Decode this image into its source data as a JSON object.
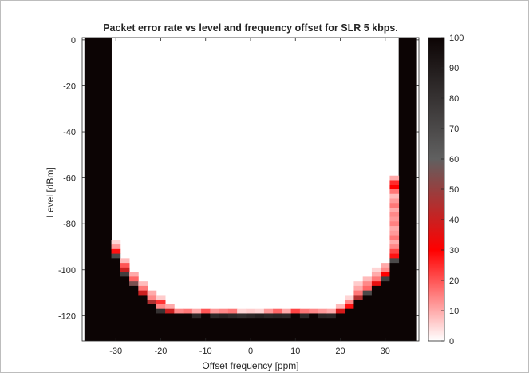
{
  "chart_data": {
    "type": "heatmap",
    "title": "Packet error rate vs level and frequency offset for SLR 5 kbps.",
    "xlabel": "Offset frequency [ppm]",
    "ylabel": "Level [dBm]",
    "xlim": [
      -37.5,
      37.5
    ],
    "ylim": [
      -131,
      1
    ],
    "xticks": [
      -30,
      -20,
      -10,
      0,
      10,
      20,
      30
    ],
    "yticks": [
      0,
      -20,
      -40,
      -60,
      -80,
      -100,
      -120
    ],
    "cell_width_ppm": 2,
    "cell_height_dBm": 2,
    "x_columns": [
      -36,
      -34,
      -32,
      -30,
      -28,
      -26,
      -24,
      -22,
      -20,
      -18,
      -16,
      -14,
      -12,
      -10,
      -8,
      -6,
      -4,
      -2,
      0,
      2,
      4,
      6,
      8,
      10,
      12,
      14,
      16,
      18,
      20,
      22,
      24,
      26,
      28,
      30,
      32,
      34,
      36
    ],
    "colorbar": {
      "min": 0,
      "max": 100,
      "ticks": [
        0,
        10,
        20,
        30,
        40,
        50,
        60,
        70,
        80,
        90,
        100
      ],
      "colormap": "white-red-black"
    },
    "fully_failing_columns": [
      -36,
      -34,
      -32,
      34,
      36
    ],
    "bottom_failing_below_dBm": -120,
    "column_profiles": [
      {
        "x": -30,
        "transition": [
          {
            "y": -88,
            "v": 5
          },
          {
            "y": -90,
            "v": 12
          },
          {
            "y": -92,
            "v": 28
          },
          {
            "y": -94,
            "v": 70
          }
        ],
        "solid_below": -96
      },
      {
        "x": -28,
        "transition": [
          {
            "y": -96,
            "v": 8
          },
          {
            "y": -98,
            "v": 20
          },
          {
            "y": -100,
            "v": 40
          },
          {
            "y": -102,
            "v": 75
          }
        ],
        "solid_below": -104
      },
      {
        "x": -26,
        "transition": [
          {
            "y": -102,
            "v": 10
          },
          {
            "y": -104,
            "v": 18
          },
          {
            "y": -106,
            "v": 55
          }
        ],
        "solid_below": -108
      },
      {
        "x": -24,
        "transition": [
          {
            "y": -106,
            "v": 8
          },
          {
            "y": -108,
            "v": 16
          },
          {
            "y": -110,
            "v": 40
          }
        ],
        "solid_below": -112
      },
      {
        "x": -22,
        "transition": [
          {
            "y": -110,
            "v": 10
          },
          {
            "y": -112,
            "v": 14
          },
          {
            "y": -114,
            "v": 45
          }
        ],
        "solid_below": -116
      },
      {
        "x": -20,
        "transition": [
          {
            "y": -112,
            "v": 6
          },
          {
            "y": -114,
            "v": 24
          },
          {
            "y": -116,
            "v": 14
          },
          {
            "y": -118,
            "v": 80
          }
        ],
        "solid_below": -120
      },
      {
        "x": -18,
        "transition": [
          {
            "y": -116,
            "v": 10
          },
          {
            "y": -118,
            "v": 40
          }
        ],
        "solid_below": -120
      },
      {
        "x": -16,
        "transition": [
          {
            "y": -118,
            "v": 14
          }
        ],
        "solid_below": -120
      },
      {
        "x": -14,
        "transition": [
          {
            "y": -118,
            "v": 16
          }
        ],
        "solid_below": -120
      },
      {
        "x": -12,
        "transition": [
          {
            "y": -118,
            "v": 10
          },
          {
            "y": -120,
            "v": 85
          }
        ],
        "solid_below": -122
      },
      {
        "x": -10,
        "transition": [
          {
            "y": -118,
            "v": 20
          }
        ],
        "solid_below": -120
      },
      {
        "x": -8,
        "transition": [
          {
            "y": -118,
            "v": 12
          },
          {
            "y": -120,
            "v": 85
          }
        ],
        "solid_below": -122
      },
      {
        "x": -6,
        "transition": [
          {
            "y": -118,
            "v": 14
          },
          {
            "y": -120,
            "v": 88
          }
        ],
        "solid_below": -122
      },
      {
        "x": -4,
        "transition": [
          {
            "y": -118,
            "v": 16
          },
          {
            "y": -120,
            "v": 85
          }
        ],
        "solid_below": -122
      },
      {
        "x": -2,
        "transition": [
          {
            "y": -118,
            "v": 5
          },
          {
            "y": -120,
            "v": 82
          }
        ],
        "solid_below": -122
      },
      {
        "x": 0,
        "transition": [
          {
            "y": -118,
            "v": 6
          },
          {
            "y": -120,
            "v": 85
          }
        ],
        "solid_below": -122
      },
      {
        "x": 2,
        "transition": [
          {
            "y": -118,
            "v": 5
          },
          {
            "y": -120,
            "v": 88
          }
        ],
        "solid_below": -122
      },
      {
        "x": 4,
        "transition": [
          {
            "y": -118,
            "v": 12
          },
          {
            "y": -120,
            "v": 85
          }
        ],
        "solid_below": -122
      },
      {
        "x": 6,
        "transition": [
          {
            "y": -118,
            "v": 18
          },
          {
            "y": -120,
            "v": 86
          }
        ],
        "solid_below": -122
      },
      {
        "x": 8,
        "transition": [
          {
            "y": -118,
            "v": 10
          },
          {
            "y": -120,
            "v": 85
          }
        ],
        "solid_below": -122
      },
      {
        "x": 10,
        "transition": [
          {
            "y": -118,
            "v": 22
          }
        ],
        "solid_below": -120
      },
      {
        "x": 12,
        "transition": [
          {
            "y": -118,
            "v": 16
          },
          {
            "y": -120,
            "v": 85
          }
        ],
        "solid_below": -122
      },
      {
        "x": 14,
        "transition": [
          {
            "y": -118,
            "v": 14
          }
        ],
        "solid_below": -120
      },
      {
        "x": 16,
        "transition": [
          {
            "y": -118,
            "v": 12
          },
          {
            "y": -120,
            "v": 86
          }
        ],
        "solid_below": -122
      },
      {
        "x": 18,
        "transition": [
          {
            "y": -118,
            "v": 10
          },
          {
            "y": -120,
            "v": 85
          }
        ],
        "solid_below": -122
      },
      {
        "x": 20,
        "transition": [
          {
            "y": -116,
            "v": 8
          },
          {
            "y": -118,
            "v": 38
          }
        ],
        "solid_below": -120
      },
      {
        "x": 22,
        "transition": [
          {
            "y": -112,
            "v": 5
          },
          {
            "y": -114,
            "v": 14
          },
          {
            "y": -116,
            "v": 28
          }
        ],
        "solid_below": -118
      },
      {
        "x": 24,
        "transition": [
          {
            "y": -106,
            "v": 6
          },
          {
            "y": -108,
            "v": 10
          },
          {
            "y": -110,
            "v": 16
          },
          {
            "y": -112,
            "v": 45
          }
        ],
        "solid_below": -114
      },
      {
        "x": 26,
        "transition": [
          {
            "y": -104,
            "v": 8
          },
          {
            "y": -106,
            "v": 14
          },
          {
            "y": -108,
            "v": 18
          },
          {
            "y": -110,
            "v": 70
          }
        ],
        "solid_below": -112
      },
      {
        "x": 28,
        "transition": [
          {
            "y": -100,
            "v": 5
          },
          {
            "y": -102,
            "v": 10
          },
          {
            "y": -104,
            "v": 16
          },
          {
            "y": -106,
            "v": 35
          }
        ],
        "solid_below": -108
      },
      {
        "x": 30,
        "transition": [
          {
            "y": -98,
            "v": 10
          },
          {
            "y": -100,
            "v": 14
          },
          {
            "y": -102,
            "v": 30
          },
          {
            "y": -104,
            "v": 75
          }
        ],
        "solid_below": -106
      },
      {
        "x": 32,
        "transition": [
          {
            "y": -60,
            "v": 10
          },
          {
            "y": -62,
            "v": 25
          },
          {
            "y": -64,
            "v": 30
          },
          {
            "y": -66,
            "v": 16
          },
          {
            "y": -68,
            "v": 8
          },
          {
            "y": -70,
            "v": 12
          },
          {
            "y": -72,
            "v": 16
          },
          {
            "y": -74,
            "v": 10
          },
          {
            "y": -76,
            "v": 14
          },
          {
            "y": -78,
            "v": 12
          },
          {
            "y": -80,
            "v": 15
          },
          {
            "y": -82,
            "v": 10
          },
          {
            "y": -84,
            "v": 12
          },
          {
            "y": -86,
            "v": 16
          },
          {
            "y": -88,
            "v": 10
          },
          {
            "y": -90,
            "v": 14
          },
          {
            "y": -92,
            "v": 22
          },
          {
            "y": -94,
            "v": 28
          },
          {
            "y": -96,
            "v": 70
          }
        ],
        "solid_below": -98
      }
    ]
  }
}
